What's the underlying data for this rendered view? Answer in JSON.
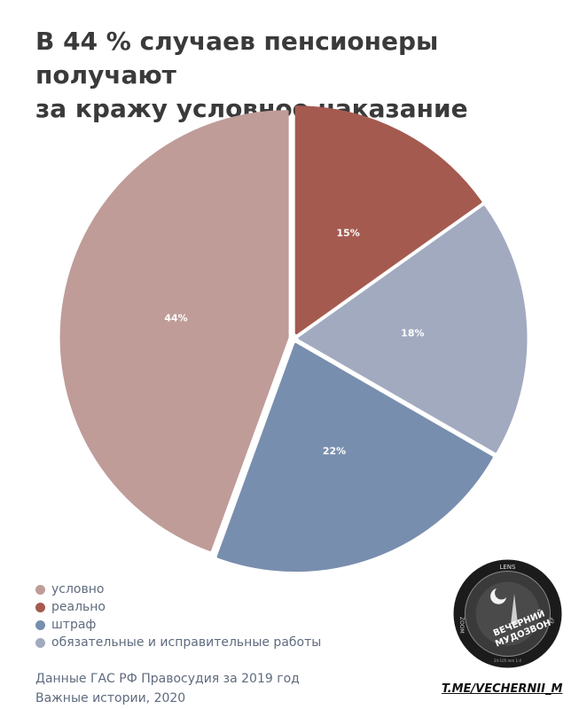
{
  "title": {
    "line1": "В 44 % случаев пенсионеры получают",
    "line2": "за кражу условное наказание"
  },
  "chart_data": {
    "type": "pie",
    "title": "В 44 % случаев пенсионеры получают за кражу условное наказание",
    "slices": [
      {
        "name": "условно",
        "value": 44,
        "label": "44%",
        "color": "#bf9c98"
      },
      {
        "name": "реально",
        "value": 15,
        "label": "15%",
        "color": "#a55a4f"
      },
      {
        "name": "штраф",
        "value": 22,
        "label": "22%",
        "color": "#788eae"
      },
      {
        "name": "обязательные и исправительные работы",
        "value": 18,
        "label": "18%",
        "color": "#a2aac0"
      }
    ],
    "legend_position": "bottom-left"
  },
  "legend": [
    {
      "label": "условно",
      "color": "#bf9c98"
    },
    {
      "label": "реально",
      "color": "#a55a4f"
    },
    {
      "label": "штраф",
      "color": "#788eae"
    },
    {
      "label": "обязательные и исправительные работы",
      "color": "#a2aac0"
    }
  ],
  "source": {
    "line1": "Данные ГАС РФ Правосудия за 2019 год",
    "line2": "Важные истории, 2020"
  },
  "logo": {
    "text_top": "LENS",
    "text_left": "ZOOM",
    "text_right": "EF",
    "name_line1": "ВЕЧЕРНИЙ",
    "name_line2": "МУДОЗВОН",
    "small_text": "24-105 mm 1:4"
  },
  "handle": "T.ME/VECHERNII_M"
}
